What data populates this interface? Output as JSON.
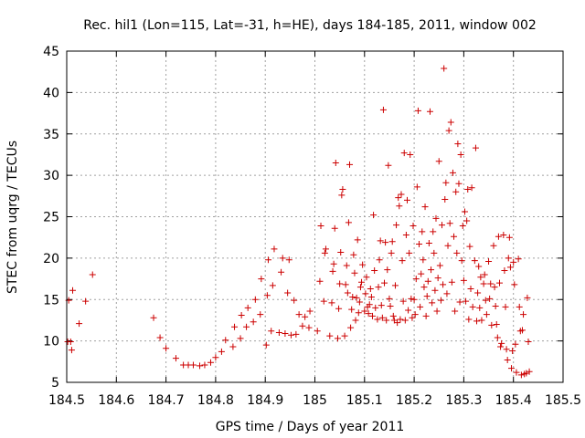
{
  "chart_data": {
    "type": "scatter",
    "title": "Rec. hil1 (Lon=115, Lat=-31, h=HE), days 184-185, 2011, window 002",
    "xlabel": "GPS time / Days of year 2011",
    "ylabel": "STEC from uqrg / TECUs",
    "xlim": [
      184.5,
      185.5
    ],
    "ylim": [
      5,
      45
    ],
    "xticks": [
      184.5,
      184.6,
      184.7,
      184.8,
      184.9,
      185.0,
      185.1,
      185.2,
      185.3,
      185.4,
      185.5
    ],
    "xtick_labels": [
      "184.5",
      "184.6",
      "184.7",
      "184.8",
      "184.9",
      "185",
      "185.1",
      "185.2",
      "185.3",
      "185.4",
      "185.5"
    ],
    "yticks": [
      5,
      10,
      15,
      20,
      25,
      30,
      35,
      40,
      45
    ],
    "ytick_labels": [
      "5",
      "10",
      "15",
      "20",
      "25",
      "30",
      "35",
      "40",
      "45"
    ],
    "grid": true,
    "marker": "+",
    "marker_color": "#cc0000",
    "series": [
      {
        "name": "STEC",
        "points": [
          [
            184.502,
            9.9
          ],
          [
            184.504,
            14.9
          ],
          [
            184.508,
            9.9
          ],
          [
            184.51,
            8.9
          ],
          [
            184.512,
            16.1
          ],
          [
            184.525,
            12.1
          ],
          [
            184.538,
            14.8
          ],
          [
            184.552,
            18.0
          ],
          [
            184.675,
            12.8
          ],
          [
            184.688,
            10.4
          ],
          [
            184.7,
            9.1
          ],
          [
            184.72,
            7.9
          ],
          [
            184.735,
            7.1
          ],
          [
            184.745,
            7.1
          ],
          [
            184.755,
            7.1
          ],
          [
            184.768,
            7.0
          ],
          [
            184.778,
            7.1
          ],
          [
            184.79,
            7.4
          ],
          [
            184.8,
            8.0
          ],
          [
            184.812,
            8.7
          ],
          [
            184.82,
            10.1
          ],
          [
            184.835,
            9.3
          ],
          [
            184.838,
            11.7
          ],
          [
            184.85,
            10.3
          ],
          [
            184.852,
            13.1
          ],
          [
            184.862,
            11.7
          ],
          [
            184.865,
            14.0
          ],
          [
            184.876,
            12.3
          ],
          [
            184.88,
            15.0
          ],
          [
            184.89,
            13.2
          ],
          [
            184.892,
            17.5
          ],
          [
            184.902,
            9.5
          ],
          [
            184.904,
            15.5
          ],
          [
            184.906,
            19.8
          ],
          [
            184.912,
            11.2
          ],
          [
            184.915,
            16.7
          ],
          [
            184.918,
            21.1
          ],
          [
            184.928,
            11.0
          ],
          [
            184.932,
            18.3
          ],
          [
            184.935,
            20.0
          ],
          [
            184.94,
            10.9
          ],
          [
            184.945,
            15.8
          ],
          [
            184.948,
            19.8
          ],
          [
            184.952,
            10.7
          ],
          [
            184.958,
            14.9
          ],
          [
            184.962,
            10.8
          ],
          [
            184.968,
            13.2
          ],
          [
            184.975,
            11.8
          ],
          [
            184.98,
            12.9
          ],
          [
            184.988,
            11.6
          ],
          [
            184.99,
            13.6
          ],
          [
            185.005,
            11.2
          ],
          [
            185.01,
            17.2
          ],
          [
            185.012,
            23.9
          ],
          [
            185.018,
            14.8
          ],
          [
            185.02,
            20.6
          ],
          [
            185.022,
            21.1
          ],
          [
            185.03,
            10.6
          ],
          [
            185.034,
            14.6
          ],
          [
            185.036,
            18.4
          ],
          [
            185.038,
            19.3
          ],
          [
            185.04,
            23.6
          ],
          [
            185.042,
            31.5
          ],
          [
            185.046,
            10.3
          ],
          [
            185.048,
            13.9
          ],
          [
            185.05,
            16.9
          ],
          [
            185.052,
            20.7
          ],
          [
            185.054,
            27.6
          ],
          [
            185.056,
            28.3
          ],
          [
            185.06,
            10.6
          ],
          [
            185.062,
            16.8
          ],
          [
            185.064,
            19.1
          ],
          [
            185.066,
            15.8
          ],
          [
            185.068,
            24.3
          ],
          [
            185.07,
            31.3
          ],
          [
            185.072,
            11.6
          ],
          [
            185.074,
            13.8
          ],
          [
            185.076,
            15.3
          ],
          [
            185.078,
            20.4
          ],
          [
            185.08,
            18.2
          ],
          [
            185.082,
            12.5
          ],
          [
            185.084,
            15.2
          ],
          [
            185.086,
            22.2
          ],
          [
            185.088,
            13.4
          ],
          [
            185.09,
            14.7
          ],
          [
            185.092,
            16.5
          ],
          [
            185.094,
            17.1
          ],
          [
            185.096,
            19.2
          ],
          [
            185.1,
            13.6
          ],
          [
            185.102,
            15.7
          ],
          [
            185.104,
            17.7
          ],
          [
            185.106,
            14.1
          ],
          [
            185.108,
            13.3
          ],
          [
            185.11,
            14.4
          ],
          [
            185.112,
            16.3
          ],
          [
            185.114,
            15.3
          ],
          [
            185.116,
            13.0
          ],
          [
            185.118,
            25.2
          ],
          [
            185.12,
            18.5
          ],
          [
            185.122,
            14.0
          ],
          [
            185.126,
            12.6
          ],
          [
            185.128,
            16.5
          ],
          [
            185.13,
            19.8
          ],
          [
            185.132,
            22.1
          ],
          [
            185.134,
            14.3
          ],
          [
            185.136,
            12.8
          ],
          [
            185.138,
            37.9
          ],
          [
            185.14,
            17.0
          ],
          [
            185.142,
            21.9
          ],
          [
            185.144,
            12.5
          ],
          [
            185.146,
            18.6
          ],
          [
            185.148,
            31.2
          ],
          [
            185.15,
            15.1
          ],
          [
            185.152,
            14.2
          ],
          [
            185.154,
            20.6
          ],
          [
            185.156,
            22.0
          ],
          [
            185.158,
            13.0
          ],
          [
            185.16,
            12.5
          ],
          [
            185.162,
            16.7
          ],
          [
            185.164,
            24.0
          ],
          [
            185.166,
            12.2
          ],
          [
            185.168,
            27.3
          ],
          [
            185.17,
            26.3
          ],
          [
            185.172,
            12.6
          ],
          [
            185.174,
            27.7
          ],
          [
            185.176,
            19.7
          ],
          [
            185.178,
            14.8
          ],
          [
            185.18,
            32.7
          ],
          [
            185.182,
            12.5
          ],
          [
            185.184,
            22.8
          ],
          [
            185.186,
            27.0
          ],
          [
            185.188,
            13.7
          ],
          [
            185.19,
            20.6
          ],
          [
            185.192,
            32.5
          ],
          [
            185.194,
            15.1
          ],
          [
            185.196,
            12.8
          ],
          [
            185.198,
            23.9
          ],
          [
            185.2,
            15.0
          ],
          [
            185.202,
            13.2
          ],
          [
            185.204,
            17.5
          ],
          [
            185.206,
            28.6
          ],
          [
            185.208,
            37.8
          ],
          [
            185.21,
            21.7
          ],
          [
            185.212,
            14.1
          ],
          [
            185.214,
            18.1
          ],
          [
            185.216,
            23.2
          ],
          [
            185.218,
            19.8
          ],
          [
            185.22,
            16.5
          ],
          [
            185.222,
            26.2
          ],
          [
            185.224,
            13.0
          ],
          [
            185.226,
            15.4
          ],
          [
            185.228,
            17.2
          ],
          [
            185.23,
            21.8
          ],
          [
            185.232,
            37.7
          ],
          [
            185.234,
            18.6
          ],
          [
            185.236,
            14.6
          ],
          [
            185.238,
            23.2
          ],
          [
            185.24,
            20.6
          ],
          [
            185.242,
            16.1
          ],
          [
            185.244,
            24.8
          ],
          [
            185.246,
            13.6
          ],
          [
            185.248,
            17.6
          ],
          [
            185.25,
            31.7
          ],
          [
            185.252,
            19.1
          ],
          [
            185.254,
            14.9
          ],
          [
            185.256,
            24.0
          ],
          [
            185.258,
            16.8
          ],
          [
            185.26,
            42.9
          ],
          [
            185.262,
            27.1
          ],
          [
            185.264,
            29.1
          ],
          [
            185.266,
            15.7
          ],
          [
            185.268,
            21.5
          ],
          [
            185.27,
            35.4
          ],
          [
            185.272,
            24.2
          ],
          [
            185.274,
            36.4
          ],
          [
            185.276,
            17.1
          ],
          [
            185.278,
            30.3
          ],
          [
            185.28,
            22.6
          ],
          [
            185.282,
            13.6
          ],
          [
            185.284,
            28.0
          ],
          [
            185.286,
            20.6
          ],
          [
            185.288,
            33.8
          ],
          [
            185.29,
            29.0
          ],
          [
            185.292,
            14.7
          ],
          [
            185.294,
            32.5
          ],
          [
            185.296,
            19.7
          ],
          [
            185.298,
            23.9
          ],
          [
            185.3,
            17.3
          ],
          [
            185.302,
            25.6
          ],
          [
            185.304,
            14.8
          ],
          [
            185.306,
            24.5
          ],
          [
            185.308,
            28.3
          ],
          [
            185.31,
            12.6
          ],
          [
            185.312,
            21.4
          ],
          [
            185.314,
            16.3
          ],
          [
            185.316,
            28.5
          ],
          [
            185.318,
            14.1
          ],
          [
            185.322,
            19.7
          ],
          [
            185.324,
            33.3
          ],
          [
            185.326,
            12.4
          ],
          [
            185.328,
            15.8
          ],
          [
            185.33,
            19.0
          ],
          [
            185.332,
            14.0
          ],
          [
            185.334,
            17.7
          ],
          [
            185.336,
            12.5
          ],
          [
            185.34,
            16.9
          ],
          [
            185.342,
            18.0
          ],
          [
            185.344,
            14.9
          ],
          [
            185.346,
            13.2
          ],
          [
            185.35,
            19.6
          ],
          [
            185.352,
            15.1
          ],
          [
            185.354,
            16.9
          ],
          [
            185.356,
            11.9
          ],
          [
            185.36,
            21.5
          ],
          [
            185.362,
            16.5
          ],
          [
            185.364,
            14.2
          ],
          [
            185.366,
            12.0
          ],
          [
            185.368,
            10.4
          ],
          [
            185.37,
            22.6
          ],
          [
            185.372,
            17.0
          ],
          [
            185.374,
            9.3
          ],
          [
            185.376,
            9.7
          ],
          [
            185.38,
            22.8
          ],
          [
            185.382,
            18.5
          ],
          [
            185.384,
            14.1
          ],
          [
            185.386,
            9.0
          ],
          [
            185.388,
            7.7
          ],
          [
            185.39,
            20.0
          ],
          [
            185.392,
            22.5
          ],
          [
            185.394,
            18.9
          ],
          [
            185.396,
            6.7
          ],
          [
            185.398,
            8.8
          ],
          [
            185.4,
            19.5
          ],
          [
            185.402,
            16.8
          ],
          [
            185.404,
            9.6
          ],
          [
            185.406,
            6.2
          ],
          [
            185.41,
            19.9
          ],
          [
            185.412,
            14.1
          ],
          [
            185.414,
            11.2
          ],
          [
            185.416,
            5.9
          ],
          [
            185.418,
            11.3
          ],
          [
            185.42,
            13.2
          ],
          [
            185.422,
            6.0
          ],
          [
            185.426,
            6.1
          ],
          [
            185.428,
            15.2
          ],
          [
            185.43,
            9.9
          ],
          [
            185.432,
            6.3
          ]
        ]
      }
    ]
  }
}
